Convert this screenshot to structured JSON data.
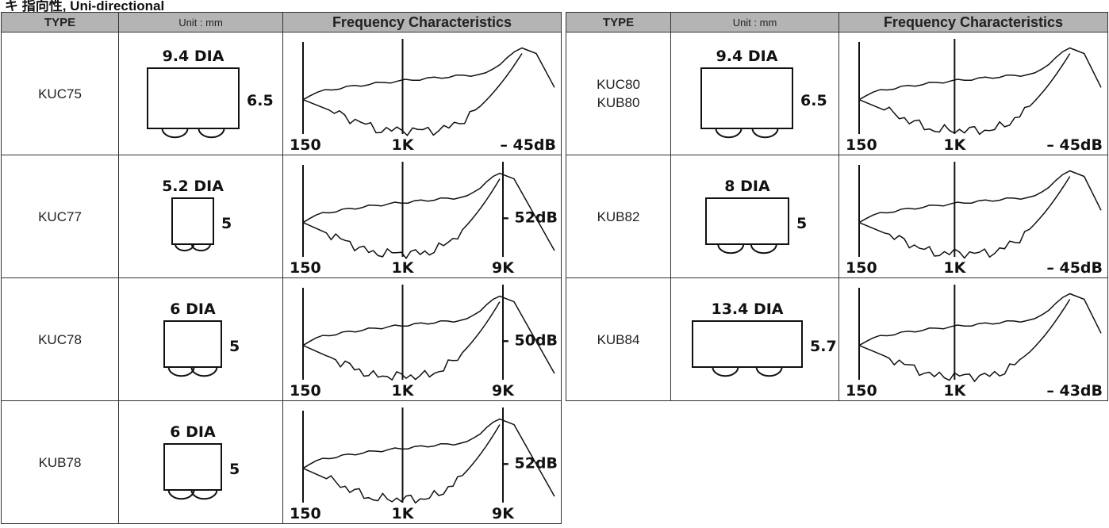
{
  "heading": "キ 指向性, Uni-directional",
  "columns": {
    "type": "TYPE",
    "unit": "Unit : mm",
    "freq": "Frequency Characteristics"
  },
  "left": [
    {
      "types": [
        "KUC75"
      ],
      "dia": "9.4 DIA",
      "height": "6.5",
      "f_start": "150",
      "f_mid": "1K",
      "f_end": "",
      "level": "– 45dB"
    },
    {
      "types": [
        "KUC77"
      ],
      "dia": "5.2 DIA",
      "height": "5",
      "f_start": "150",
      "f_mid": "1K",
      "f_end": "9K",
      "level": "– 52dB"
    },
    {
      "types": [
        "KUC78"
      ],
      "dia": "6 DIA",
      "height": "5",
      "f_start": "150",
      "f_mid": "1K",
      "f_end": "9K",
      "level": "– 50dB"
    },
    {
      "types": [
        "KUB78"
      ],
      "dia": "6 DIA",
      "height": "5",
      "f_start": "150",
      "f_mid": "1K",
      "f_end": "9K",
      "level": "– 52dB"
    }
  ],
  "right": [
    {
      "types": [
        "KUC80",
        "KUB80"
      ],
      "dia": "9.4 DIA",
      "height": "6.5",
      "f_start": "150",
      "f_mid": "1K",
      "f_end": "",
      "level": "– 45dB"
    },
    {
      "types": [
        "KUB82"
      ],
      "dia": "8 DIA",
      "height": "5",
      "f_start": "150",
      "f_mid": "1K",
      "f_end": "",
      "level": "– 45dB"
    },
    {
      "types": [
        "KUB84"
      ],
      "dia": "13.4 DIA",
      "height": "5.7",
      "f_start": "150",
      "f_mid": "1K",
      "f_end": "",
      "level": "– 43dB"
    }
  ]
}
